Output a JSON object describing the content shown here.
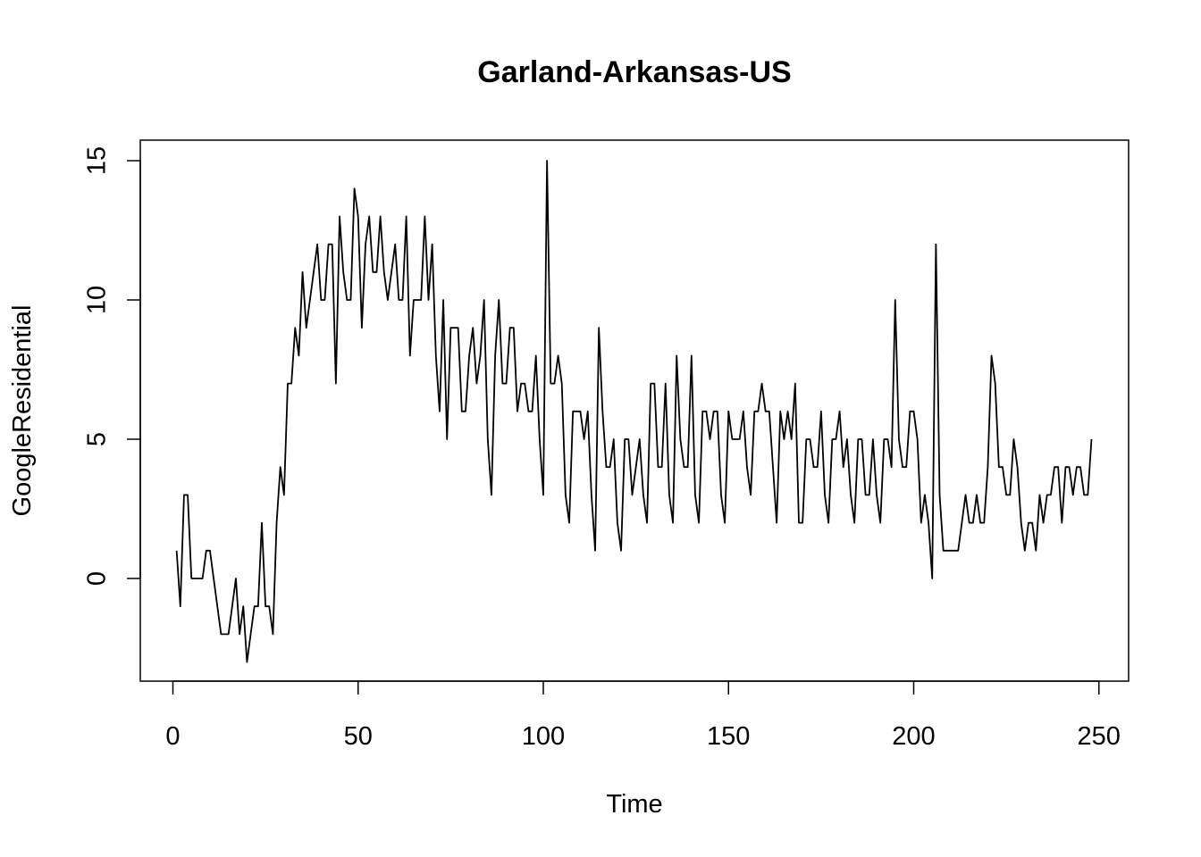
{
  "chart_data": {
    "type": "line",
    "title": "Garland-Arkansas-US",
    "xlabel": "Time",
    "ylabel": "GoogleResidential",
    "xlim": [
      1,
      248
    ],
    "ylim": [
      -3,
      15
    ],
    "xticks": [
      0,
      50,
      100,
      150,
      200,
      250
    ],
    "yticks": [
      0,
      5,
      10,
      15
    ],
    "grid": false,
    "series": [
      {
        "x_start": 1,
        "values": [
          1,
          -1,
          3,
          3,
          0,
          0,
          0,
          0,
          1,
          1,
          0,
          -1,
          -2,
          -2,
          -2,
          -1,
          0,
          -2,
          -1,
          -3,
          -2,
          -1,
          -1,
          2,
          -1,
          -1,
          -2,
          2,
          4,
          3,
          7,
          7,
          9,
          8,
          11,
          9,
          10,
          11,
          12,
          10,
          10,
          12,
          12,
          7,
          13,
          11,
          10,
          10,
          14,
          13,
          9,
          12,
          13,
          11,
          11,
          13,
          11,
          10,
          11,
          12,
          10,
          10,
          13,
          8,
          10,
          10,
          10,
          13,
          10,
          12,
          8,
          6,
          10,
          5,
          9,
          9,
          9,
          6,
          6,
          8,
          9,
          7,
          8,
          10,
          5,
          3,
          8,
          10,
          7,
          7,
          9,
          9,
          6,
          7,
          7,
          6,
          6,
          8,
          5,
          3,
          15,
          7,
          7,
          8,
          7,
          3,
          2,
          6,
          6,
          6,
          5,
          6,
          3,
          1,
          9,
          6,
          4,
          4,
          5,
          2,
          1,
          5,
          5,
          3,
          4,
          5,
          3,
          2,
          7,
          7,
          4,
          4,
          7,
          3,
          2,
          8,
          5,
          4,
          4,
          8,
          3,
          2,
          6,
          6,
          5,
          6,
          6,
          3,
          2,
          6,
          5,
          5,
          5,
          6,
          4,
          3,
          6,
          6,
          7,
          6,
          6,
          4,
          2,
          6,
          5,
          6,
          5,
          7,
          2,
          2,
          5,
          5,
          4,
          4,
          6,
          3,
          2,
          5,
          5,
          6,
          4,
          5,
          3,
          2,
          5,
          5,
          3,
          3,
          5,
          3,
          2,
          5,
          5,
          4,
          10,
          5,
          4,
          4,
          6,
          6,
          5,
          2,
          3,
          2,
          0,
          12,
          3,
          1,
          1,
          1,
          1,
          1,
          2,
          3,
          2,
          2,
          3,
          2,
          2,
          4,
          8,
          7,
          4,
          4,
          3,
          3,
          5,
          4,
          2,
          1,
          2,
          2,
          1,
          3,
          2,
          3,
          3,
          4,
          4,
          2,
          4,
          4,
          3,
          4,
          4,
          3,
          3,
          5
        ]
      }
    ]
  }
}
